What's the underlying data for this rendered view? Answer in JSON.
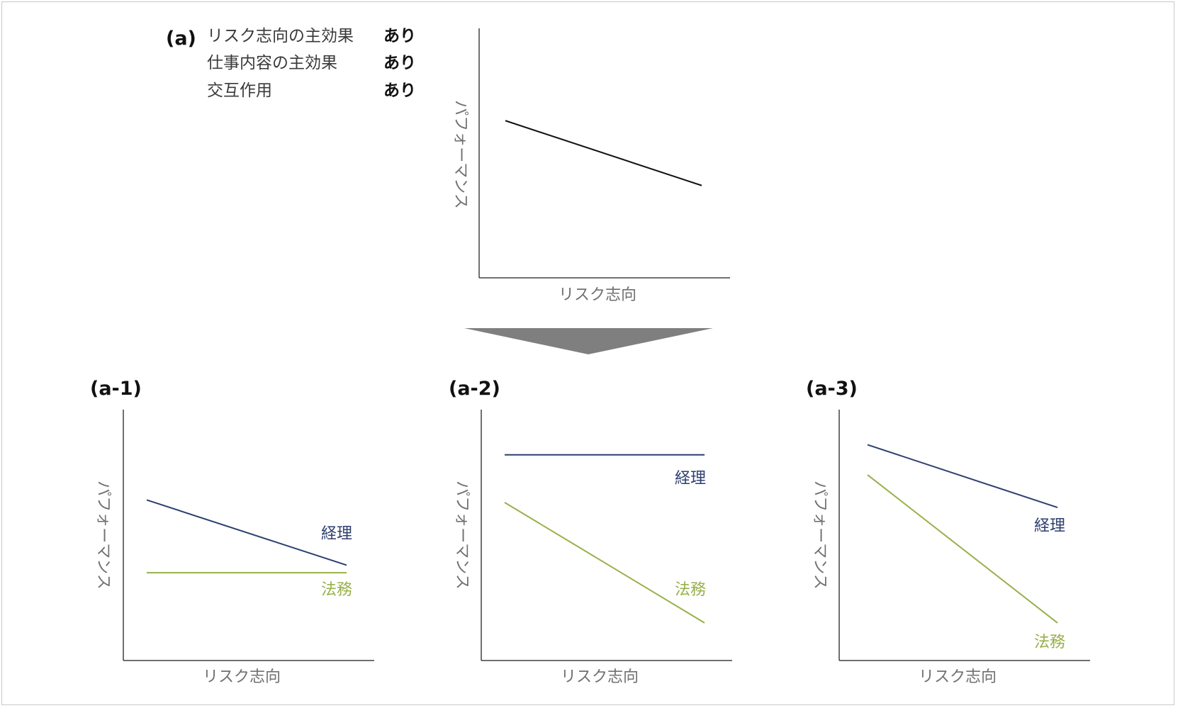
{
  "colors": {
    "axis": "#404040",
    "overall_line": "#111111",
    "accounting": "#2e3f6e",
    "legal": "#98b04a",
    "arrow": "#7f7f7f",
    "axis_label": "#707070"
  },
  "header": {
    "tag": "(a)",
    "conditions": [
      {
        "label": "リスク志向の主効果",
        "value": "あり"
      },
      {
        "label": "仕事内容の主効果",
        "value": "あり"
      },
      {
        "label": "交互作用",
        "value": "あり"
      }
    ]
  },
  "top_chart": {
    "xlabel": "リスク志向",
    "ylabel": "パフォーマンス",
    "line": {
      "start_level": 0.63,
      "end_level": 0.37
    }
  },
  "panels": [
    {
      "tag": "(a-1)",
      "xlabel": "リスク志向",
      "ylabel": "パフォーマンス",
      "series": [
        {
          "name": "経理",
          "start_level": 0.64,
          "end_level": 0.38
        },
        {
          "name": "法務",
          "start_level": 0.35,
          "end_level": 0.35
        }
      ]
    },
    {
      "tag": "(a-2)",
      "xlabel": "リスク志向",
      "ylabel": "パフォーマンス",
      "series": [
        {
          "name": "経理",
          "start_level": 0.82,
          "end_level": 0.82
        },
        {
          "name": "法務",
          "start_level": 0.63,
          "end_level": 0.15
        }
      ]
    },
    {
      "tag": "(a-3)",
      "xlabel": "リスク志向",
      "ylabel": "パフォーマンス",
      "series": [
        {
          "name": "経理",
          "start_level": 0.86,
          "end_level": 0.61
        },
        {
          "name": "法務",
          "start_level": 0.74,
          "end_level": 0.15
        }
      ]
    }
  ]
}
